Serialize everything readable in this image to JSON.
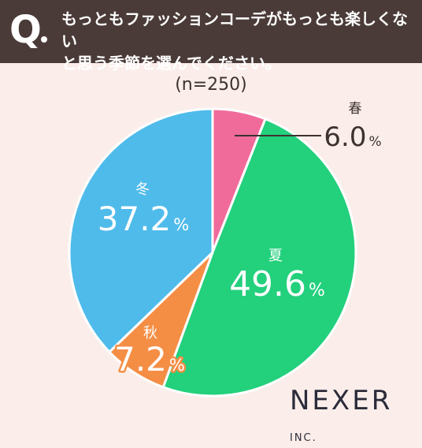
{
  "question": {
    "mark": "Q",
    "text_line1": "もっともファッションコーデがもっとも楽しくない",
    "text_line2": "と思う季節を選んでください。"
  },
  "sample_label": "(n=250)",
  "brand": {
    "name": "NEXER",
    "suffix": "INC."
  },
  "colors": {
    "header_bg": "#4a3b38",
    "background": "#fbeeea",
    "spring": "#f06b9a",
    "summer": "#23d07c",
    "autumn": "#f58e45",
    "winter": "#4fbbeb"
  },
  "chart_data": {
    "type": "pie",
    "slices": [
      {
        "label": "春",
        "value": 6.0,
        "value_text": "6.0",
        "unit": "%",
        "color": "#f06b9a"
      },
      {
        "label": "夏",
        "value": 49.6,
        "value_text": "49.6",
        "unit": "%",
        "color": "#23d07c"
      },
      {
        "label": "秋",
        "value": 7.2,
        "value_text": "7.2",
        "unit": "%",
        "color": "#f58e45"
      },
      {
        "label": "冬",
        "value": 37.2,
        "value_text": "37.2",
        "unit": "%",
        "color": "#4fbbeb"
      }
    ]
  }
}
